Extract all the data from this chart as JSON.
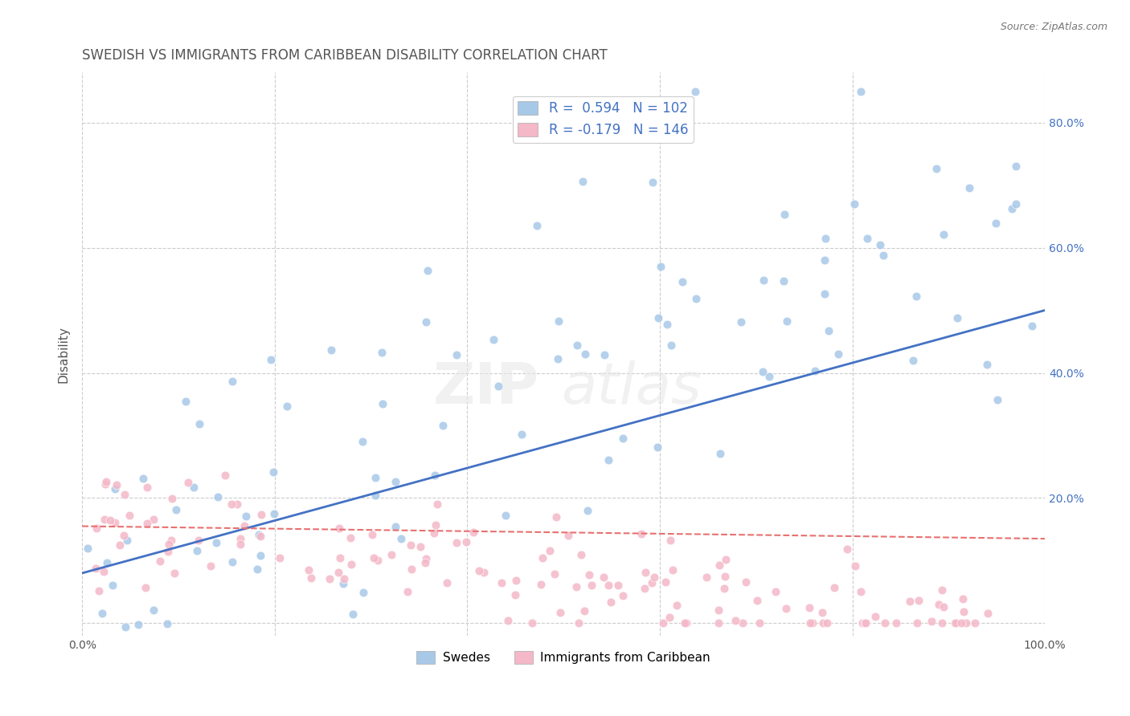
{
  "title": "SWEDISH VS IMMIGRANTS FROM CARIBBEAN DISABILITY CORRELATION CHART",
  "source_text": "Source: ZipAtlas.com",
  "xlabel": "",
  "ylabel": "Disability",
  "xlim": [
    0.0,
    1.0
  ],
  "ylim": [
    -0.02,
    0.88
  ],
  "x_ticks": [
    0.0,
    0.2,
    0.4,
    0.6,
    0.8,
    1.0
  ],
  "x_tick_labels": [
    "0.0%",
    "",
    "",
    "",
    "",
    "100.0%"
  ],
  "y_ticks": [
    0.0,
    0.2,
    0.4,
    0.6,
    0.8
  ],
  "y_tick_labels": [
    "",
    "20.0%",
    "40.0%",
    "60.0%",
    "80.0%"
  ],
  "legend_entries": [
    {
      "label": "Swedes",
      "color": "#a8c8e8",
      "R": "0.594",
      "N": "102"
    },
    {
      "label": "Immigrants from Caribbean",
      "color": "#f4a8b8",
      "R": "-0.179",
      "N": "146"
    }
  ],
  "blue_color": "#6baed6",
  "pink_color": "#f768a1",
  "blue_scatter_color": "#a8c8e8",
  "pink_scatter_color": "#f4b8c8",
  "blue_line_color": "#4472c4",
  "pink_line_color": "#e87070",
  "watermark": "ZIPat las",
  "background_color": "#ffffff",
  "grid_color": "#cccccc",
  "title_color": "#555555",
  "label_color": "#4472c4",
  "R_blue": 0.594,
  "N_blue": 102,
  "R_pink": -0.179,
  "N_pink": 146,
  "blue_intercept": 0.08,
  "blue_slope": 0.42,
  "pink_intercept": 0.155,
  "pink_slope": -0.02
}
